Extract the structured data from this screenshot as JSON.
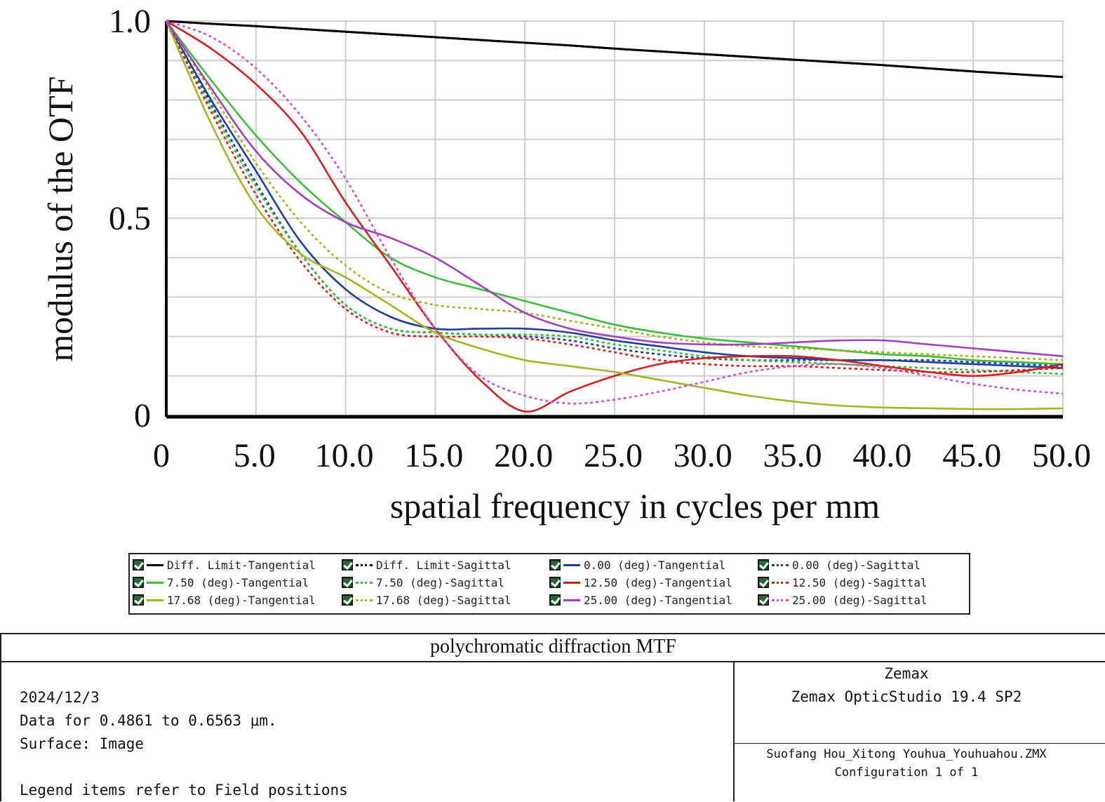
{
  "chart_data": {
    "type": "line",
    "xlabel": "spatial frequency in cycles per mm",
    "ylabel": "modulus of the OTF",
    "xlim": [
      0,
      50
    ],
    "ylim": [
      0,
      1.0
    ],
    "x_ticks": [
      "0",
      "5.0",
      "10.0",
      "15.0",
      "20.0",
      "25.0",
      "30.0",
      "35.0",
      "40.0",
      "45.0",
      "50.0"
    ],
    "y_ticks": [
      "0",
      "0.5",
      "1.0"
    ],
    "grid": true,
    "legend_placement": "bottom",
    "x": [
      0,
      2.5,
      5,
      7.5,
      10,
      12.5,
      15,
      17.5,
      20,
      22.5,
      25,
      27.5,
      30,
      32.5,
      35,
      37.5,
      40,
      42.5,
      45,
      47.5,
      50
    ],
    "series": [
      {
        "name": "Diff. Limit-Tangential",
        "color": "#000000",
        "dash": "solid",
        "values": [
          1.0,
          0.993,
          0.987,
          0.98,
          0.973,
          0.966,
          0.959,
          0.952,
          0.945,
          0.938,
          0.93,
          0.923,
          0.916,
          0.909,
          0.902,
          0.895,
          0.888,
          0.88,
          0.872,
          0.865,
          0.858
        ]
      },
      {
        "name": "Diff. Limit-Sagittal",
        "color": "#000000",
        "dash": "dotted",
        "values": [
          1.0,
          0.993,
          0.987,
          0.98,
          0.973,
          0.966,
          0.959,
          0.952,
          0.945,
          0.938,
          0.93,
          0.923,
          0.916,
          0.909,
          0.902,
          0.895,
          0.888,
          0.88,
          0.872,
          0.865,
          0.858
        ]
      },
      {
        "name": "0.00 (deg)-Tangential",
        "color": "#1f3fa0",
        "dash": "solid",
        "values": [
          1.0,
          0.8,
          0.62,
          0.44,
          0.32,
          0.25,
          0.22,
          0.22,
          0.22,
          0.21,
          0.19,
          0.175,
          0.16,
          0.15,
          0.145,
          0.14,
          0.14,
          0.135,
          0.13,
          0.125,
          0.12
        ]
      },
      {
        "name": "0.00 (deg)-Sagittal",
        "color": "#1f3fa0",
        "dash": "dotted",
        "values": [
          1.0,
          0.79,
          0.59,
          0.41,
          0.28,
          0.22,
          0.21,
          0.205,
          0.2,
          0.19,
          0.17,
          0.155,
          0.145,
          0.14,
          0.14,
          0.14,
          0.14,
          0.14,
          0.135,
          0.13,
          0.125
        ]
      },
      {
        "name": "7.50 (deg)-Tangential",
        "color": "#3cbc3c",
        "dash": "solid",
        "values": [
          1.0,
          0.85,
          0.71,
          0.59,
          0.49,
          0.4,
          0.35,
          0.32,
          0.29,
          0.26,
          0.23,
          0.21,
          0.195,
          0.185,
          0.175,
          0.165,
          0.155,
          0.15,
          0.14,
          0.135,
          0.13
        ]
      },
      {
        "name": "7.50 (deg)-Sagittal",
        "color": "#3cbc3c",
        "dash": "dotted",
        "values": [
          1.0,
          0.78,
          0.58,
          0.41,
          0.28,
          0.22,
          0.21,
          0.205,
          0.205,
          0.2,
          0.18,
          0.165,
          0.15,
          0.14,
          0.135,
          0.13,
          0.125,
          0.12,
          0.115,
          0.11,
          0.105
        ]
      },
      {
        "name": "12.50 (deg)-Tangential",
        "color": "#d42020",
        "dash": "solid",
        "values": [
          1.0,
          0.93,
          0.84,
          0.72,
          0.54,
          0.38,
          0.22,
          0.09,
          0.01,
          0.06,
          0.1,
          0.13,
          0.145,
          0.15,
          0.15,
          0.14,
          0.125,
          0.11,
          0.1,
          0.11,
          0.13
        ]
      },
      {
        "name": "12.50 (deg)-Sagittal",
        "color": "#d42020",
        "dash": "dotted",
        "values": [
          1.0,
          0.77,
          0.56,
          0.39,
          0.27,
          0.21,
          0.2,
          0.2,
          0.195,
          0.18,
          0.16,
          0.14,
          0.13,
          0.125,
          0.125,
          0.12,
          0.115,
          0.11,
          0.11,
          0.115,
          0.12
        ]
      },
      {
        "name": "17.68 (deg)-Tangential",
        "color": "#a6b424",
        "dash": "solid",
        "values": [
          1.0,
          0.74,
          0.53,
          0.41,
          0.35,
          0.28,
          0.21,
          0.17,
          0.14,
          0.125,
          0.11,
          0.09,
          0.07,
          0.05,
          0.035,
          0.025,
          0.02,
          0.018,
          0.016,
          0.016,
          0.018
        ]
      },
      {
        "name": "17.68 (deg)-Sagittal",
        "color": "#a6b424",
        "dash": "dotted",
        "values": [
          1.0,
          0.82,
          0.64,
          0.49,
          0.38,
          0.31,
          0.28,
          0.27,
          0.26,
          0.24,
          0.22,
          0.2,
          0.185,
          0.175,
          0.17,
          0.165,
          0.16,
          0.155,
          0.15,
          0.145,
          0.14
        ]
      },
      {
        "name": "25.00 (deg)-Tangential",
        "color": "#a43ec0",
        "dash": "solid",
        "values": [
          1.0,
          0.83,
          0.67,
          0.56,
          0.49,
          0.45,
          0.4,
          0.33,
          0.26,
          0.22,
          0.2,
          0.185,
          0.18,
          0.18,
          0.185,
          0.19,
          0.19,
          0.18,
          0.17,
          0.16,
          0.15
        ]
      },
      {
        "name": "25.00 (deg)-Sagittal",
        "color": "#d050d0",
        "dash": "dotted",
        "values": [
          1.0,
          0.96,
          0.88,
          0.76,
          0.6,
          0.4,
          0.22,
          0.1,
          0.05,
          0.03,
          0.04,
          0.06,
          0.085,
          0.11,
          0.125,
          0.13,
          0.12,
          0.1,
          0.08,
          0.065,
          0.055
        ]
      }
    ]
  },
  "legend": [
    {
      "label": "Diff. Limit-Tangential",
      "color": "#000000",
      "dash": "solid"
    },
    {
      "label": "Diff. Limit-Sagittal",
      "color": "#000000",
      "dash": "dotted"
    },
    {
      "label": "0.00 (deg)-Tangential",
      "color": "#1f3fa0",
      "dash": "solid"
    },
    {
      "label": "0.00 (deg)-Sagittal",
      "color": "#1f3fa0",
      "dash": "dotted"
    },
    {
      "label": "7.50 (deg)-Tangential",
      "color": "#3cbc3c",
      "dash": "solid"
    },
    {
      "label": "7.50 (deg)-Sagittal",
      "color": "#3cbc3c",
      "dash": "dotted"
    },
    {
      "label": "12.50 (deg)-Tangential",
      "color": "#d42020",
      "dash": "solid"
    },
    {
      "label": "12.50 (deg)-Sagittal",
      "color": "#d42020",
      "dash": "dotted"
    },
    {
      "label": "17.68 (deg)-Tangential",
      "color": "#a6b424",
      "dash": "solid"
    },
    {
      "label": "17.68 (deg)-Sagittal",
      "color": "#a6b424",
      "dash": "dotted"
    },
    {
      "label": "25.00 (deg)-Tangential",
      "color": "#a43ec0",
      "dash": "solid"
    },
    {
      "label": "25.00 (deg)-Sagittal",
      "color": "#d050d0",
      "dash": "dotted"
    }
  ],
  "info": {
    "title": "polychromatic diffraction MTF",
    "date": "2024/12/3",
    "data_range": "Data for 0.4861 to 0.6563 μm.",
    "surface": "Surface: Image",
    "legend_note": "Legend items refer to Field positions",
    "vendor": "Zemax",
    "product": "Zemax OpticStudio 19.4 SP2",
    "file": "Suofang Hou_Xitong Youhua_Youhuahou.ZMX",
    "configuration": "Configuration 1 of 1"
  }
}
